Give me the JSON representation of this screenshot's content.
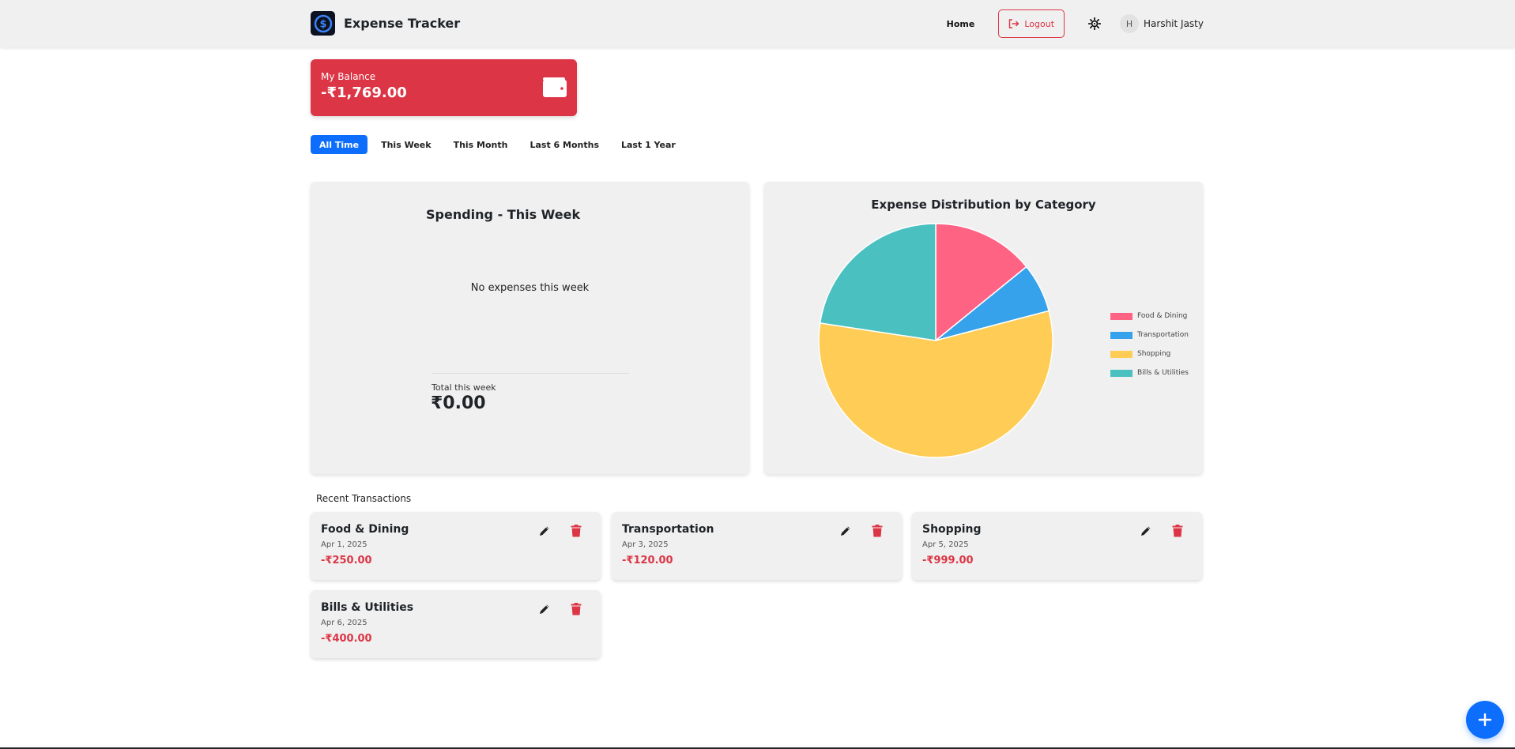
{
  "header": {
    "app_title": "Expense Tracker",
    "home_label": "Home",
    "logout_label": "Logout",
    "user_initial": "H",
    "user_name": "Harshit Jasty"
  },
  "balance": {
    "label": "My Balance",
    "amount": "-₹1,769.00",
    "color": "#dc3545"
  },
  "filters": [
    {
      "label": "All Time",
      "active": true
    },
    {
      "label": "This Week",
      "active": false
    },
    {
      "label": "This Month",
      "active": false
    },
    {
      "label": "Last 6 Months",
      "active": false
    },
    {
      "label": "Last 1 Year",
      "active": false
    }
  ],
  "week_panel": {
    "title": "Spending - This Week",
    "empty_message": "No expenses this week",
    "total_label": "Total this week",
    "total_amount": "₹0.00"
  },
  "chart_data": {
    "type": "pie",
    "title": "Expense Distribution by Category",
    "categories": [
      "Food & Dining",
      "Transportation",
      "Shopping",
      "Bills & Utilities"
    ],
    "values": [
      250,
      120,
      999,
      400
    ],
    "colors": [
      "#ff6384",
      "#36a2eb",
      "#ffcd56",
      "#4bc0c0"
    ],
    "legend_position": "right"
  },
  "recent": {
    "title": "Recent Transactions",
    "transactions": [
      {
        "category": "Food & Dining",
        "date": "Apr 1, 2025",
        "amount": "-₹250.00"
      },
      {
        "category": "Transportation",
        "date": "Apr 3, 2025",
        "amount": "-₹120.00"
      },
      {
        "category": "Shopping",
        "date": "Apr 5, 2025",
        "amount": "-₹999.00"
      },
      {
        "category": "Bills & Utilities",
        "date": "Apr 6, 2025",
        "amount": "-₹400.00"
      }
    ]
  },
  "colors": {
    "primary": "#0d6efd",
    "danger": "#dc3545"
  },
  "icons": {
    "logo": "dollar-logo-icon",
    "logout": "logout-icon",
    "theme": "sun-icon",
    "wallet": "wallet-icon",
    "edit": "pencil-icon",
    "delete": "trash-icon",
    "add": "plus-icon"
  }
}
